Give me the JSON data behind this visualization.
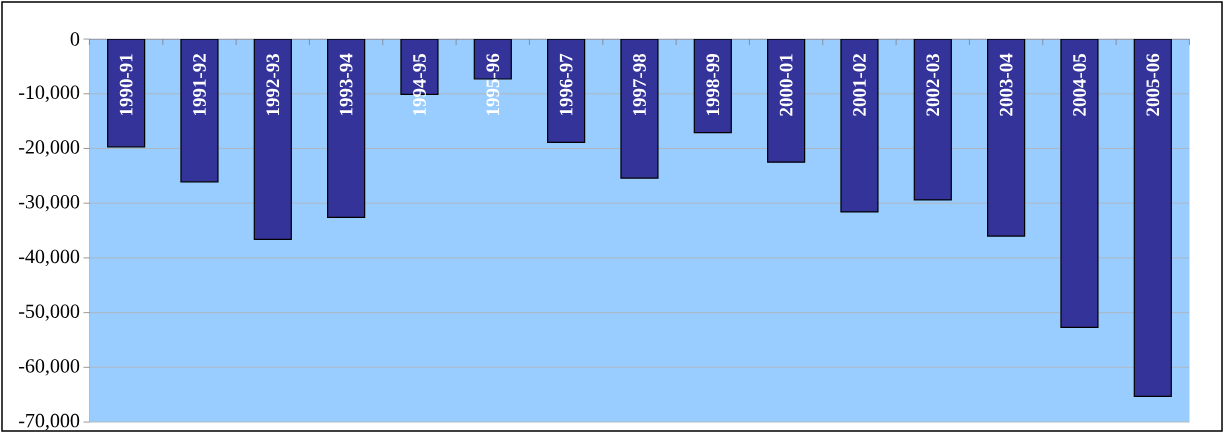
{
  "chart_data": {
    "type": "bar",
    "categories": [
      "1990-91",
      "1991-92",
      "1992-93",
      "1993-94",
      "1994-95",
      "1995-96",
      "1996-97",
      "1997-98",
      "1998-99",
      "2000-01",
      "2001-02",
      "2002-03",
      "2003-04",
      "2004-05",
      "2005-06"
    ],
    "values": [
      -19700,
      -26100,
      -36600,
      -32600,
      -10100,
      -7300,
      -18900,
      -25400,
      -17100,
      -22500,
      -31600,
      -29400,
      -36000,
      -52700,
      -65300
    ],
    "color": "#333399",
    "ylim": [
      -70000,
      0
    ],
    "yticks": [
      {
        "value": -70000,
        "label": "-70,000"
      },
      {
        "value": -60000,
        "label": "-60,000"
      },
      {
        "value": -50000,
        "label": "-50,000"
      },
      {
        "value": -40000,
        "label": "-40,000"
      },
      {
        "value": -30000,
        "label": "-30,000"
      },
      {
        "value": -20000,
        "label": "-20,000"
      },
      {
        "value": -10000,
        "label": "-10,000"
      },
      0
    ],
    "grid": "y"
  }
}
